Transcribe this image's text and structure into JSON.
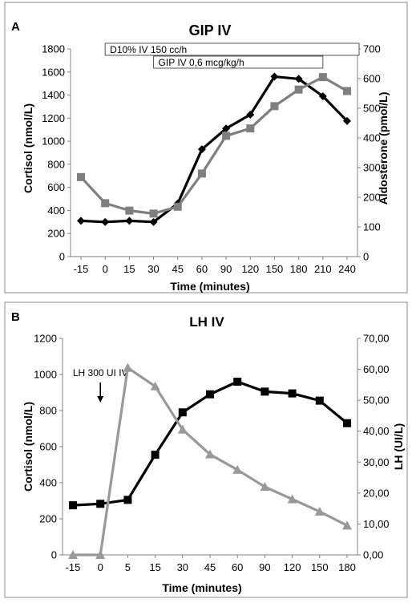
{
  "chart_data": [
    {
      "panel_letter": "A",
      "type": "line",
      "title": "GIP IV",
      "xlabel": "Time (minutes)",
      "ylabel_left": "Cortisol (nmol/L)",
      "ylabel_right": "Aldosterone (pmol/L)",
      "categories": [
        "-15",
        "0",
        "15",
        "30",
        "45",
        "60",
        "90",
        "120",
        "150",
        "180",
        "210",
        "240"
      ],
      "ylim_left": [
        0,
        1800
      ],
      "yticks_left": [
        "0",
        "200",
        "400",
        "600",
        "800",
        "1000",
        "1200",
        "1400",
        "1600",
        "1800"
      ],
      "ylim_right": [
        0,
        700
      ],
      "yticks_right": [
        "0",
        "100",
        "200",
        "300",
        "400",
        "500",
        "600",
        "700"
      ],
      "grid": false,
      "annotations": [
        {
          "text": "D10% IV 150 cc/h",
          "x_start": "0",
          "x_end": "240"
        },
        {
          "text": "GIP IV 0,6 mcg/kg/h",
          "x_start": "30",
          "x_end": "210"
        }
      ],
      "series": [
        {
          "axis": "left",
          "marker": "diamond",
          "color": "#000000",
          "values": [
            310,
            300,
            310,
            300,
            460,
            930,
            1110,
            1230,
            1560,
            1540,
            1390,
            1175
          ]
        },
        {
          "axis": "right",
          "marker": "square",
          "color": "#7f7f7f",
          "values": [
            268,
            180,
            155,
            145,
            168,
            280,
            407,
            432,
            507,
            563,
            605,
            558
          ]
        }
      ]
    },
    {
      "panel_letter": "B",
      "type": "line",
      "title": "LH IV",
      "xlabel": "Time (minutes)",
      "ylabel_left": "Cortisol (nmol/L)",
      "ylabel_right": "LH (UI/L)",
      "categories": [
        "-15",
        "0",
        "5",
        "15",
        "30",
        "45",
        "60",
        "90",
        "120",
        "150",
        "180"
      ],
      "ylim_left": [
        0,
        1200
      ],
      "yticks_left": [
        "0",
        "200",
        "400",
        "600",
        "800",
        "1000",
        "1200"
      ],
      "ylim_right": [
        0,
        70
      ],
      "yticks_right": [
        "0,00",
        "10,00",
        "20,00",
        "30,00",
        "40,00",
        "50,00",
        "60,00",
        "70,00"
      ],
      "grid": false,
      "annotations": [
        {
          "text": "LH 300 UI IV",
          "x": "0",
          "arrow": "down"
        }
      ],
      "series": [
        {
          "axis": "left",
          "marker": "square",
          "color": "#000000",
          "values": [
            275,
            283,
            305,
            555,
            790,
            890,
            960,
            905,
            895,
            855,
            730
          ]
        },
        {
          "axis": "right",
          "marker": "triangle",
          "color": "#999999",
          "values": [
            0,
            0,
            60.5,
            54.5,
            40.5,
            32.5,
            27.5,
            22,
            18,
            14,
            9.5
          ]
        }
      ]
    }
  ]
}
